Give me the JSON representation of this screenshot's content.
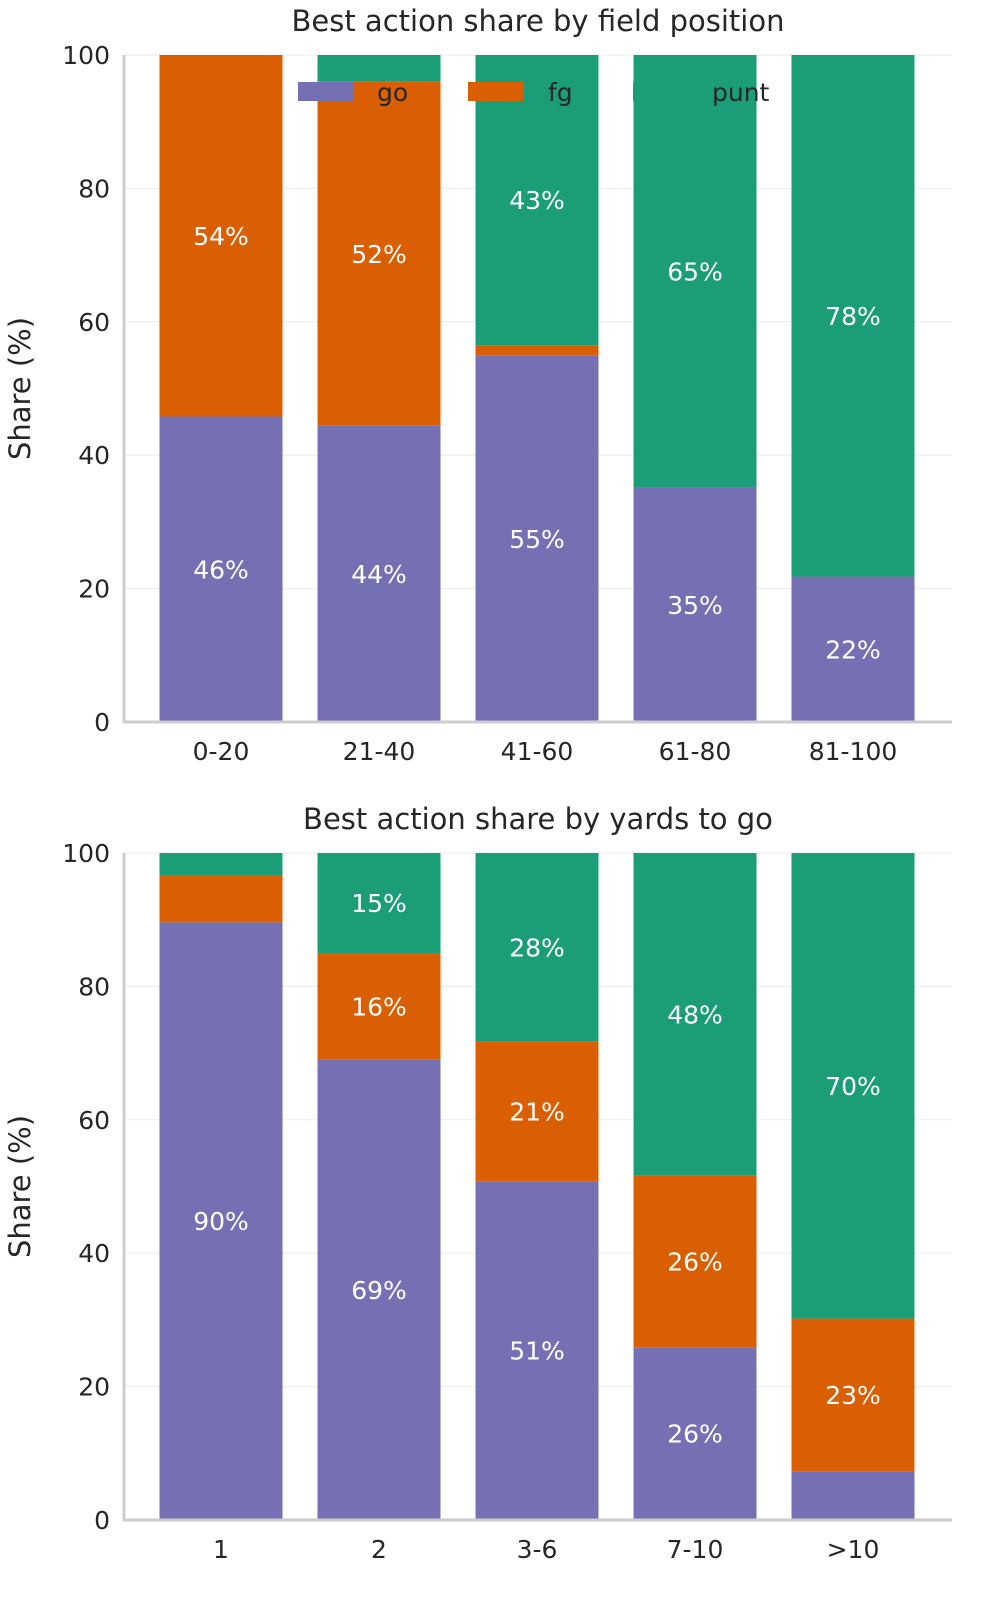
{
  "colors": {
    "go": "#7570b3",
    "fg": "#d95f02",
    "punt": "#1b9e77"
  },
  "chart_data": [
    {
      "type": "bar",
      "stacked": true,
      "title": "Best action share by field position",
      "xlabel": "",
      "ylabel": "Share (%)",
      "ylim": [
        0,
        100
      ],
      "yticks": [
        0,
        20,
        40,
        60,
        80,
        100
      ],
      "grid": true,
      "legend": {
        "position": "top",
        "entries": [
          "go",
          "fg",
          "punt"
        ]
      },
      "categories": [
        "0-20",
        "21-40",
        "41-60",
        "61-80",
        "81-100"
      ],
      "series": [
        {
          "name": "go",
          "values": [
            45.8,
            44.4,
            54.9,
            35.1,
            21.8
          ],
          "labels": [
            "46%",
            "44%",
            "55%",
            "35%",
            "22%"
          ]
        },
        {
          "name": "fg",
          "values": [
            54.2,
            51.6,
            1.6,
            0,
            0
          ],
          "labels": [
            "54%",
            "52%",
            "",
            "",
            ""
          ]
        },
        {
          "name": "punt",
          "values": [
            0,
            4.0,
            43.5,
            64.9,
            78.2
          ],
          "labels": [
            "",
            "",
            "43%",
            "65%",
            "78%"
          ]
        }
      ]
    },
    {
      "type": "bar",
      "stacked": true,
      "title": "Best action share by yards to go",
      "xlabel": "",
      "ylabel": "Share (%)",
      "ylim": [
        0,
        100
      ],
      "yticks": [
        0,
        20,
        40,
        60,
        80,
        100
      ],
      "grid": true,
      "categories": [
        "1",
        "2",
        "3-6",
        "7-10",
        ">10"
      ],
      "series": [
        {
          "name": "go",
          "values": [
            89.6,
            69.0,
            50.8,
            25.9,
            7.3
          ],
          "labels": [
            "90%",
            "69%",
            "51%",
            "26%",
            ""
          ]
        },
        {
          "name": "fg",
          "values": [
            7.1,
            16.0,
            20.9,
            25.7,
            22.9
          ],
          "labels": [
            "",
            "16%",
            "21%",
            "26%",
            "23%"
          ]
        },
        {
          "name": "punt",
          "values": [
            3.3,
            15.0,
            28.3,
            48.4,
            69.8
          ],
          "labels": [
            "",
            "15%",
            "28%",
            "48%",
            "70%"
          ]
        }
      ]
    }
  ]
}
